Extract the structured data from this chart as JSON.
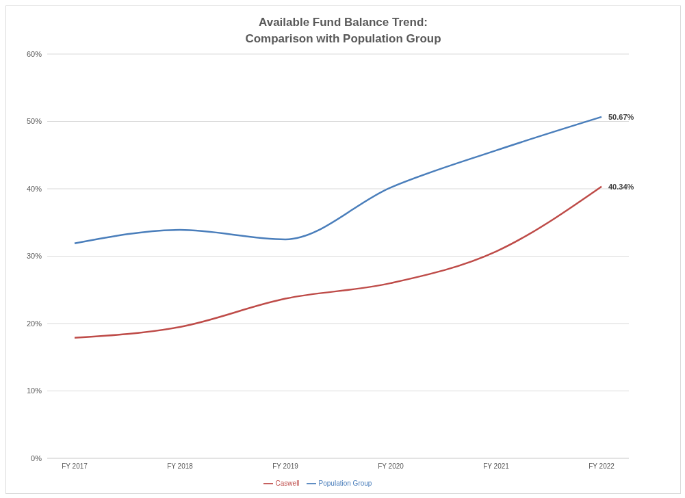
{
  "chart_data": {
    "type": "line",
    "title": "Available Fund Balance Trend:\nComparison with Population Group",
    "categories": [
      "FY 2017",
      "FY 2018",
      "FY 2019",
      "FY 2020",
      "FY 2021",
      "FY 2022"
    ],
    "series": [
      {
        "name": "Population Group",
        "color": "#4a7ebb",
        "values": [
          31.9,
          33.9,
          32.5,
          40.2,
          45.7,
          50.67
        ],
        "value_labels": [
          null,
          null,
          null,
          null,
          null,
          "50.67%"
        ]
      },
      {
        "name": "Caswell",
        "color": "#be4b48",
        "values": [
          17.9,
          19.5,
          23.7,
          26.0,
          30.7,
          40.34
        ],
        "value_labels": [
          null,
          null,
          null,
          null,
          null,
          "40.34%"
        ]
      }
    ],
    "ylim": [
      0,
      60
    ],
    "yticks": [
      {
        "value": 0,
        "label": "0%"
      },
      {
        "value": 10,
        "label": "10%"
      },
      {
        "value": 20,
        "label": "20%"
      },
      {
        "value": 30,
        "label": "30%"
      },
      {
        "value": 40,
        "label": "40%"
      },
      {
        "value": 50,
        "label": "50%"
      },
      {
        "value": 60,
        "label": "60%"
      }
    ],
    "grid": "y",
    "legend": "bottom",
    "marker": "none",
    "line_style": "solid"
  }
}
